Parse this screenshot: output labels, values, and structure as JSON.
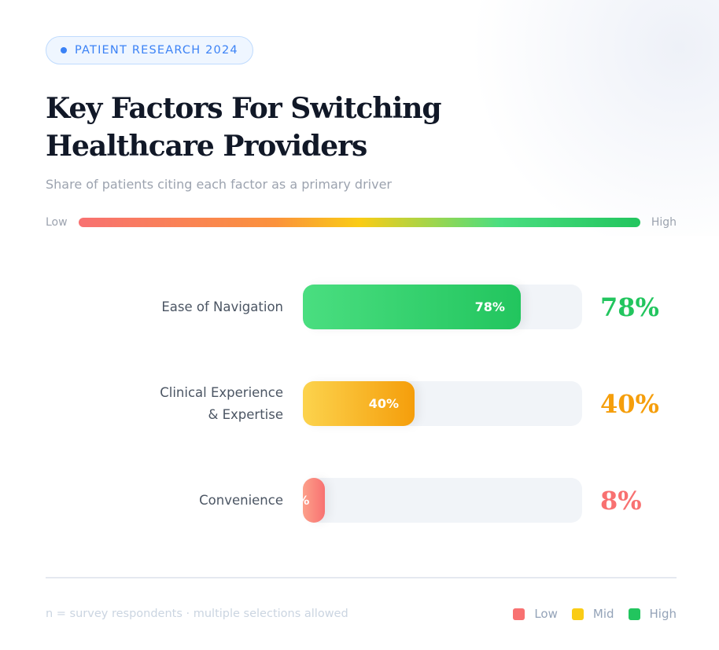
{
  "badge": "PATIENT RESEARCH 2024",
  "colors": {
    "accent": "#3b82f6",
    "low": "#f87171",
    "mid": "#facc15",
    "high": "#22c55e"
  },
  "chart_data": {
    "type": "bar",
    "orientation": "horizontal",
    "title": "Key Factors For Switching Healthcare Providers",
    "subtitle": "Share of patients citing each factor as a primary driver",
    "scale_low": "Low",
    "scale_high": "High",
    "xlim": [
      0,
      100
    ],
    "categories": [
      "Ease of Navigation",
      "Clinical Experience\n& Expertise",
      "Convenience"
    ],
    "values": [
      78,
      40,
      8
    ],
    "labels": [
      "78%",
      "40%",
      "8%"
    ],
    "bar_colors": [
      [
        "#4ade80",
        "#22c55e"
      ],
      [
        "#fcd34d",
        "#f59e0b"
      ],
      [
        "#fca08a",
        "#f87171"
      ]
    ],
    "value_colors": [
      "#22c55e",
      "#f59e0b",
      "#f87171"
    ]
  },
  "footer": {
    "note": "n = survey respondents · multiple selections allowed",
    "legend": [
      {
        "label": "Low",
        "color": "#f87171"
      },
      {
        "label": "Mid",
        "color": "#facc15"
      },
      {
        "label": "High",
        "color": "#22c55e"
      }
    ]
  }
}
